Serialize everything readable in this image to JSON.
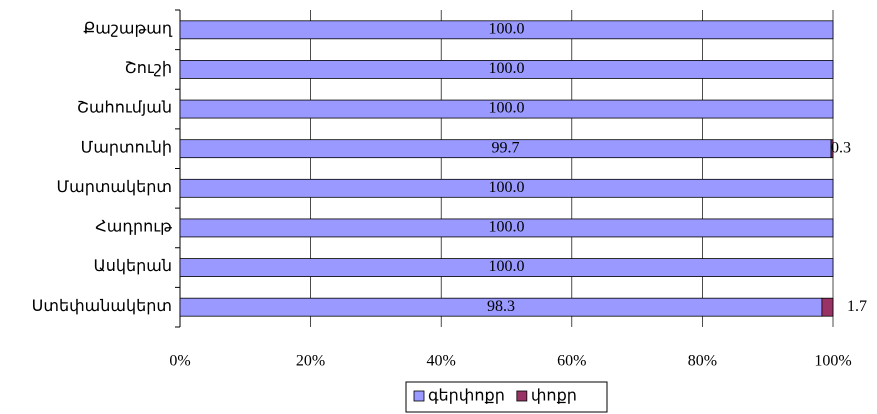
{
  "chart_data": {
    "type": "bar",
    "orientation": "horizontal",
    "stacked": true,
    "categories": [
      "Քաշաթաղ",
      "Շուշի",
      "Շահումյան",
      "Մարտունի",
      "Մարտակերտ",
      "Հադրութ",
      "Ասկերան",
      "Ստեփանակերտ"
    ],
    "series": [
      {
        "name": "գերփոքր",
        "color": "#9999ff",
        "values": [
          100,
          100,
          100,
          99.7,
          100,
          100,
          100,
          98.3
        ],
        "value_labels": [
          "100.0",
          "100.0",
          "100.0",
          "99.7",
          "100.0",
          "100.0",
          "100.0",
          "98.3"
        ]
      },
      {
        "name": "փոքր",
        "color": "#993366",
        "values": [
          0,
          0,
          0,
          0.3,
          0,
          0,
          0,
          1.7
        ],
        "value_labels": [
          null,
          null,
          null,
          "0.3",
          null,
          null,
          null,
          "1.7"
        ]
      }
    ],
    "xlim": [
      0,
      100
    ],
    "xticks": [
      {
        "value": 0,
        "label": "0%"
      },
      {
        "value": 20,
        "label": "20%"
      },
      {
        "value": 40,
        "label": "40%"
      },
      {
        "value": 60,
        "label": "60%"
      },
      {
        "value": 80,
        "label": "80%"
      },
      {
        "value": 100,
        "label": "100%"
      }
    ],
    "grid": true,
    "legend": "bottom"
  }
}
